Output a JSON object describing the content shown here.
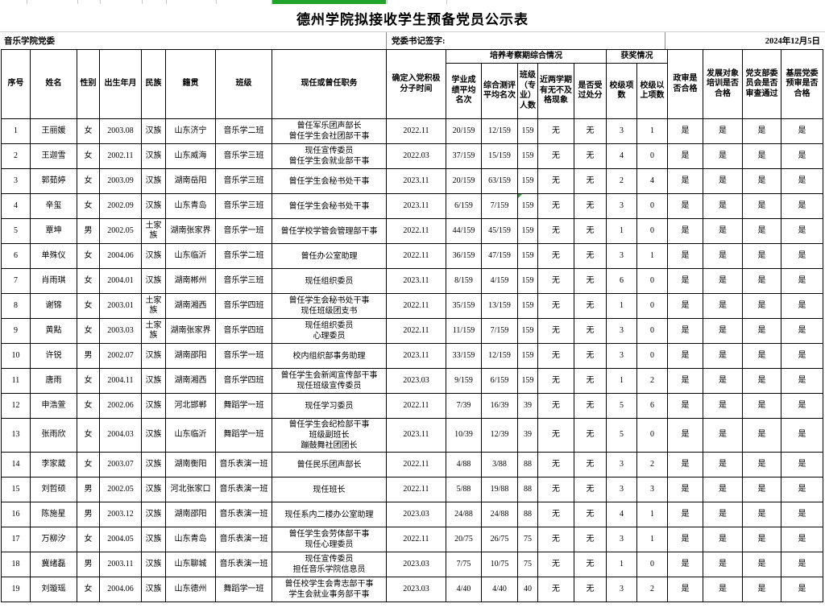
{
  "page": {
    "title": "德州学院拟接收学生预备党员公示表",
    "left_org": "音乐学院党委",
    "sign_label": "党委书记签字:",
    "date": "2024年12月5日"
  },
  "colors": {
    "accent_green": "#1FA32B",
    "table_border": "#000000",
    "gridline_gray": "#c9c9c9"
  },
  "table": {
    "header": {
      "simple_before": [
        "序号",
        "姓名",
        "性别",
        "出生年月",
        "民族",
        "籍贯",
        "班级",
        "现任或曾任职务",
        "确定入党积极分子时间"
      ],
      "group1": {
        "label": "培养考察期综合情况",
        "children": [
          "学业成绩平均名次",
          "综合测评平均名次",
          "班级（专业）人数",
          "近两学期有无不及格现象",
          "是否受过处分"
        ]
      },
      "group2": {
        "label": "获奖情况",
        "children": [
          "校级项数",
          "校级以上项数"
        ]
      },
      "simple_after": [
        "政审是否合格",
        "发展对象培训是否合格",
        "党支部委员会是否审查通过",
        "基层党委预审是否合格"
      ]
    },
    "green_marker": {
      "row_index": 3,
      "col": "size"
    },
    "rows": [
      {
        "no": "1",
        "name": "王丽媛",
        "gender": "女",
        "birth": "2003.08",
        "ethnic": "汉族",
        "origin": "山东济宁",
        "clazz": "音乐学二班",
        "position": [
          "曾任军乐团声部长",
          "曾任学生会社团部干事"
        ],
        "confirm": "2022.11",
        "academic": "20/159",
        "comprehensive": "12/159",
        "size": "159",
        "fail": "无",
        "discipline": "无",
        "awards_school": "3",
        "awards_above": "1",
        "political": "是",
        "training": "是",
        "branch": "是",
        "pretrial": "是"
      },
      {
        "no": "2",
        "name": "王迦雪",
        "gender": "女",
        "birth": "2002.11",
        "ethnic": "汉族",
        "origin": "山东威海",
        "clazz": "音乐学三班",
        "position": [
          "现任宣传委员",
          "曾任学生会就业部干事"
        ],
        "confirm": "2022.03",
        "academic": "37/159",
        "comprehensive": "15/159",
        "size": "159",
        "fail": "无",
        "discipline": "无",
        "awards_school": "4",
        "awards_above": "0",
        "political": "是",
        "training": "是",
        "branch": "是",
        "pretrial": "是"
      },
      {
        "no": "3",
        "name": "郭茹婷",
        "gender": "女",
        "birth": "2003.09",
        "ethnic": "汉族",
        "origin": "湖南岳阳",
        "clazz": "音乐学三班",
        "position": [
          "曾任学生会秘书处干事"
        ],
        "confirm": "2023.11",
        "academic": "20/159",
        "comprehensive": "63/159",
        "size": "159",
        "fail": "无",
        "discipline": "无",
        "awards_school": "2",
        "awards_above": "4",
        "political": "是",
        "training": "是",
        "branch": "是",
        "pretrial": "是"
      },
      {
        "no": "4",
        "name": "辛玺",
        "gender": "女",
        "birth": "2002.09",
        "ethnic": "汉族",
        "origin": "山东青岛",
        "clazz": "音乐学三班",
        "position": [
          "曾任学生会秘书处干事"
        ],
        "confirm": "2023.11",
        "academic": "6/159",
        "comprehensive": "7/159",
        "size": "159",
        "fail": "无",
        "discipline": "无",
        "awards_school": "3",
        "awards_above": "0",
        "political": "是",
        "training": "是",
        "branch": "是",
        "pretrial": "是"
      },
      {
        "no": "5",
        "name": "覃坤",
        "gender": "男",
        "birth": "2002.05",
        "ethnic": "土家族",
        "origin": "湖南张家界",
        "clazz": "音乐学一班",
        "position": [
          "曾任学校学管会管理部干事"
        ],
        "confirm": "2022.11",
        "academic": "44/159",
        "comprehensive": "45/159",
        "size": "159",
        "fail": "无",
        "discipline": "无",
        "awards_school": "1",
        "awards_above": "0",
        "political": "是",
        "training": "是",
        "branch": "是",
        "pretrial": "是"
      },
      {
        "no": "6",
        "name": "单殊仪",
        "gender": "女",
        "birth": "2004.06",
        "ethnic": "汉族",
        "origin": "山东临沂",
        "clazz": "音乐学二班",
        "position": [
          "曾任办公室助理"
        ],
        "confirm": "2022.11",
        "academic": "36/159",
        "comprehensive": "47/159",
        "size": "159",
        "fail": "无",
        "discipline": "无",
        "awards_school": "3",
        "awards_above": "1",
        "political": "是",
        "training": "是",
        "branch": "是",
        "pretrial": "是"
      },
      {
        "no": "7",
        "name": "肖雨琪",
        "gender": "女",
        "birth": "2004.01",
        "ethnic": "汉族",
        "origin": "湖南郴州",
        "clazz": "音乐学三班",
        "position": [
          "现任组织委员"
        ],
        "confirm": "2023.11",
        "academic": "8/159",
        "comprehensive": "4/159",
        "size": "159",
        "fail": "无",
        "discipline": "无",
        "awards_school": "6",
        "awards_above": "0",
        "political": "是",
        "training": "是",
        "branch": "是",
        "pretrial": "是"
      },
      {
        "no": "8",
        "name": "谢锦",
        "gender": "女",
        "birth": "2003.01",
        "ethnic": "土家族",
        "origin": "湖南湘西",
        "clazz": "音乐学四班",
        "position": [
          "曾任学生会秘书处干事",
          "现任班级团支书"
        ],
        "confirm": "2022.11",
        "academic": "35/159",
        "comprehensive": "13/159",
        "size": "159",
        "fail": "无",
        "discipline": "无",
        "awards_school": "1",
        "awards_above": "0",
        "political": "是",
        "training": "是",
        "branch": "是",
        "pretrial": "是"
      },
      {
        "no": "9",
        "name": "黄點",
        "gender": "女",
        "birth": "2003.03",
        "ethnic": "土家族",
        "origin": "湖南张家界",
        "clazz": "音乐学四班",
        "position": [
          "现任组织委员",
          "心理委员"
        ],
        "confirm": "2022.11",
        "academic": "11/159",
        "comprehensive": "7/159",
        "size": "159",
        "fail": "无",
        "discipline": "无",
        "awards_school": "3",
        "awards_above": "0",
        "political": "是",
        "training": "是",
        "branch": "是",
        "pretrial": "是"
      },
      {
        "no": "10",
        "name": "许锐",
        "gender": "男",
        "birth": "2002.07",
        "ethnic": "汉族",
        "origin": "湖南邵阳",
        "clazz": "音乐学一班",
        "position": [
          "校内组织部事务助理"
        ],
        "confirm": "2023.11",
        "academic": "33/159",
        "comprehensive": "12/159",
        "size": "159",
        "fail": "无",
        "discipline": "无",
        "awards_school": "3",
        "awards_above": "0",
        "political": "是",
        "training": "是",
        "branch": "是",
        "pretrial": "是"
      },
      {
        "no": "11",
        "name": "唐雨",
        "gender": "女",
        "birth": "2004.11",
        "ethnic": "汉族",
        "origin": "湖南湘西",
        "clazz": "音乐学四班",
        "position": [
          "曾任学生会新闻宣传部干事",
          "现任班级宣传委员"
        ],
        "confirm": "2023.03",
        "academic": "9/159",
        "comprehensive": "6/159",
        "size": "159",
        "fail": "无",
        "discipline": "无",
        "awards_school": "1",
        "awards_above": "2",
        "political": "是",
        "training": "是",
        "branch": "是",
        "pretrial": "是"
      },
      {
        "no": "12",
        "name": "申浩萱",
        "gender": "女",
        "birth": "2002.06",
        "ethnic": "汉族",
        "origin": "河北邯郸",
        "clazz": "舞蹈学一班",
        "position": [
          "现任学习委员"
        ],
        "confirm": "2022.11",
        "academic": "7/39",
        "comprehensive": "16/39",
        "size": "39",
        "fail": "无",
        "discipline": "无",
        "awards_school": "5",
        "awards_above": "6",
        "political": "是",
        "training": "是",
        "branch": "是",
        "pretrial": "是"
      },
      {
        "no": "13",
        "name": "张雨欣",
        "gender": "女",
        "birth": "2004.03",
        "ethnic": "汉族",
        "origin": "山东临沂",
        "clazz": "舞蹈学一班",
        "position": [
          "曾任学生会纪检部干事",
          "班级副班长",
          "蹦鼓舞社团团长"
        ],
        "confirm": "2023.11",
        "academic": "10/39",
        "comprehensive": "12/39",
        "size": "39",
        "fail": "无",
        "discipline": "无",
        "awards_school": "5",
        "awards_above": "0",
        "political": "是",
        "training": "是",
        "branch": "是",
        "pretrial": "是"
      },
      {
        "no": "14",
        "name": "李家葳",
        "gender": "女",
        "birth": "2003.07",
        "ethnic": "汉族",
        "origin": "湖南衡阳",
        "clazz": "音乐表演一班",
        "position": [
          "曾任民乐团声部长"
        ],
        "confirm": "2022.11",
        "academic": "4/88",
        "comprehensive": "3/88",
        "size": "88",
        "fail": "无",
        "discipline": "无",
        "awards_school": "3",
        "awards_above": "2",
        "political": "是",
        "training": "是",
        "branch": "是",
        "pretrial": "是"
      },
      {
        "no": "15",
        "name": "刘哲硕",
        "gender": "男",
        "birth": "2002.05",
        "ethnic": "汉族",
        "origin": "河北张家口",
        "clazz": "音乐表演一班",
        "position": [
          "现任班长"
        ],
        "confirm": "2022.11",
        "academic": "5/88",
        "comprehensive": "19/88",
        "size": "88",
        "fail": "无",
        "discipline": "无",
        "awards_school": "3",
        "awards_above": "3",
        "political": "是",
        "training": "是",
        "branch": "是",
        "pretrial": "是"
      },
      {
        "no": "16",
        "name": "陈施星",
        "gender": "男",
        "birth": "2003.12",
        "ethnic": "汉族",
        "origin": "湖南邵阳",
        "clazz": "音乐表演一班",
        "position": [
          "现任系内二楼办公室助理"
        ],
        "confirm": "2023.03",
        "academic": "24/88",
        "comprehensive": "24/88",
        "size": "88",
        "fail": "无",
        "discipline": "无",
        "awards_school": "4",
        "awards_above": "1",
        "political": "是",
        "training": "是",
        "branch": "是",
        "pretrial": "是"
      },
      {
        "no": "17",
        "name": "万柳汐",
        "gender": "女",
        "birth": "2004.05",
        "ethnic": "汉族",
        "origin": "山东青岛",
        "clazz": "音乐表演一班",
        "position": [
          "曾任学生会劳体部干事",
          "现任心理委员"
        ],
        "confirm": "2022.11",
        "academic": "20/75",
        "comprehensive": "26/75",
        "size": "75",
        "fail": "无",
        "discipline": "无",
        "awards_school": "3",
        "awards_above": "1",
        "political": "是",
        "training": "是",
        "branch": "是",
        "pretrial": "是"
      },
      {
        "no": "18",
        "name": "冀绪磊",
        "gender": "男",
        "birth": "2003.11",
        "ethnic": "汉族",
        "origin": "山东聊城",
        "clazz": "音乐表演一班",
        "position": [
          "现任宣传委员",
          "担任音乐学院信息员"
        ],
        "confirm": "2023.03",
        "academic": "7/75",
        "comprehensive": "10/75",
        "size": "75",
        "fail": "无",
        "discipline": "无",
        "awards_school": "1",
        "awards_above": "0",
        "political": "是",
        "training": "是",
        "branch": "是",
        "pretrial": "是"
      },
      {
        "no": "19",
        "name": "刘璇瑶",
        "gender": "女",
        "birth": "2004.06",
        "ethnic": "汉族",
        "origin": "山东德州",
        "clazz": "舞蹈学一班",
        "position": [
          "曾任校学生会青志部干事",
          "学生会就业事务部干事"
        ],
        "confirm": "2023.03",
        "academic": "4/40",
        "comprehensive": "4/40",
        "size": "40",
        "fail": "无",
        "discipline": "无",
        "awards_school": "3",
        "awards_above": "2",
        "political": "是",
        "training": "是",
        "branch": "是",
        "pretrial": "是"
      }
    ]
  }
}
